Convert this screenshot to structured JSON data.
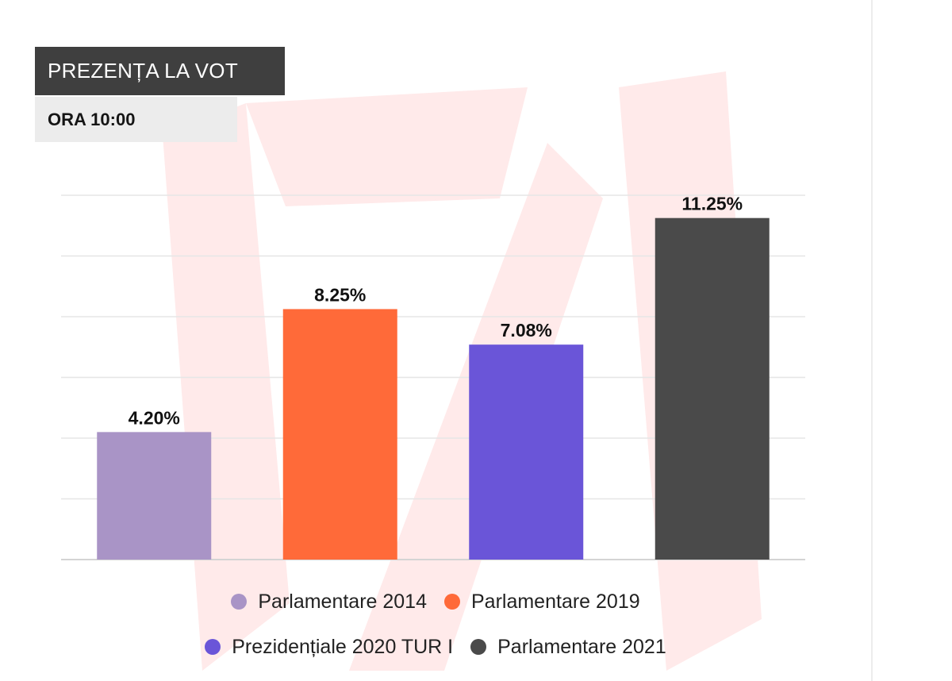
{
  "header": {
    "title": "PREZENȚA LA VOT",
    "subtitle": "ORA 10:00"
  },
  "chart_data": {
    "type": "bar",
    "title": "PREZENȚA LA VOT",
    "subtitle": "ORA 10:00",
    "categories": [
      "Parlamentare 2014",
      "Parlamentare 2019",
      "Prezidențiale 2020 TUR I",
      "Parlamentare 2021"
    ],
    "values": [
      4.2,
      8.25,
      7.08,
      11.25
    ],
    "value_labels": [
      "4.20%",
      "8.25%",
      "7.08%",
      "11.25%"
    ],
    "colors": [
      "#a994c6",
      "#ff6a39",
      "#6a55d8",
      "#4a4a4a"
    ],
    "ylim": [
      0,
      12
    ],
    "grid": true,
    "legend_position": "bottom",
    "xlabel": "",
    "ylabel": ""
  },
  "legend": {
    "rows": [
      [
        {
          "label": "Parlamentare 2014",
          "color": "#a994c6"
        },
        {
          "label": "Parlamentare 2019",
          "color": "#ff6a39"
        }
      ],
      [
        {
          "label": "Prezidențiale 2020 TUR I",
          "color": "#6a55d8"
        },
        {
          "label": "Parlamentare 2021",
          "color": "#4a4a4a"
        }
      ]
    ]
  },
  "watermark": {
    "color": "#ffeaea"
  }
}
